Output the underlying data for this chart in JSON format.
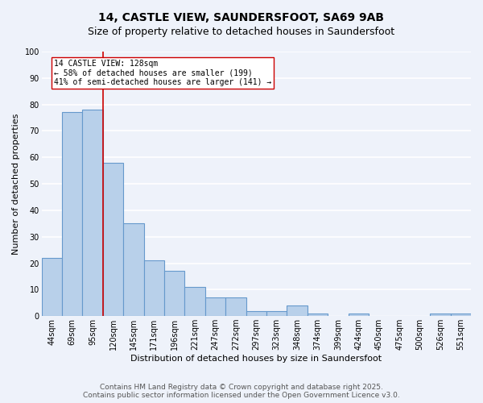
{
  "title": "14, CASTLE VIEW, SAUNDERSFOOT, SA69 9AB",
  "subtitle": "Size of property relative to detached houses in Saundersfoot",
  "xlabel": "Distribution of detached houses by size in Saundersfoot",
  "ylabel": "Number of detached properties",
  "categories": [
    "44sqm",
    "69sqm",
    "95sqm",
    "120sqm",
    "145sqm",
    "171sqm",
    "196sqm",
    "221sqm",
    "247sqm",
    "272sqm",
    "297sqm",
    "323sqm",
    "348sqm",
    "374sqm",
    "399sqm",
    "424sqm",
    "450sqm",
    "475sqm",
    "500sqm",
    "526sqm",
    "551sqm"
  ],
  "values": [
    22,
    77,
    78,
    58,
    35,
    21,
    17,
    11,
    7,
    7,
    2,
    2,
    4,
    1,
    0,
    1,
    0,
    0,
    0,
    1,
    1
  ],
  "bar_color": "#b8d0ea",
  "bar_edge_color": "#6699cc",
  "bar_linewidth": 0.8,
  "vline_index": 3,
  "vline_color": "#cc0000",
  "annotation_text": "14 CASTLE VIEW: 128sqm\n← 58% of detached houses are smaller (199)\n41% of semi-detached houses are larger (141) →",
  "ylim": [
    0,
    100
  ],
  "yticks": [
    0,
    10,
    20,
    30,
    40,
    50,
    60,
    70,
    80,
    90,
    100
  ],
  "background_color": "#eef2fa",
  "grid_color": "#ffffff",
  "footer": "Contains HM Land Registry data © Crown copyright and database right 2025.\nContains public sector information licensed under the Open Government Licence v3.0.",
  "title_fontsize": 10,
  "subtitle_fontsize": 9,
  "axis_label_fontsize": 8,
  "tick_fontsize": 7,
  "annotation_fontsize": 7,
  "footer_fontsize": 6.5
}
